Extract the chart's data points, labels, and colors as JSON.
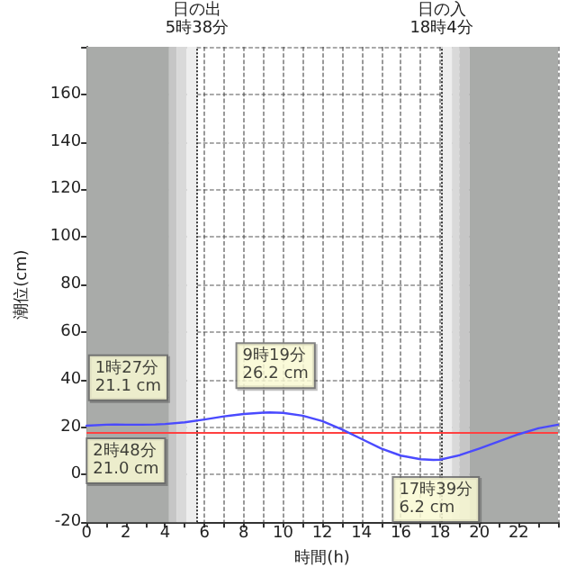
{
  "chart_data": {
    "type": "line",
    "xlabel": "時間(h)",
    "ylabel": "潮位(cm)",
    "x": [
      0,
      1,
      1.45,
      2,
      2.8,
      3.5,
      4,
      5,
      6,
      7,
      8,
      9,
      9.32,
      10,
      11,
      12,
      13,
      14,
      15,
      16,
      17,
      17.65,
      18,
      19,
      20,
      21,
      22,
      23,
      24
    ],
    "series": [
      {
        "color": "#4a4aff",
        "values": [
          20.6,
          21.0,
          21.1,
          21.0,
          21.0,
          21.1,
          21.3,
          22.0,
          23.2,
          24.5,
          25.5,
          26.1,
          26.2,
          26.0,
          24.8,
          22.5,
          19.0,
          15.0,
          11.0,
          8.0,
          6.5,
          6.2,
          6.3,
          8.2,
          11.0,
          14.0,
          17.0,
          19.5,
          21.0
        ]
      }
    ],
    "xlim": [
      0,
      24
    ],
    "ylim": [
      -20,
      180
    ],
    "xticks": [
      0,
      {
        "value": 1,
        "label": null
      },
      2,
      {
        "value": 3,
        "label": null
      },
      4,
      {
        "value": 5,
        "label": null
      },
      6,
      {
        "value": 7,
        "label": null
      },
      8,
      {
        "value": 9,
        "label": null
      },
      10,
      {
        "value": 11,
        "label": null
      },
      12,
      {
        "value": 13,
        "label": null
      },
      14,
      {
        "value": 15,
        "label": null
      },
      16,
      {
        "value": 17,
        "label": null
      },
      18,
      {
        "value": 19,
        "label": null
      },
      20,
      {
        "value": 21,
        "label": null
      },
      22,
      {
        "value": 23,
        "label": null
      },
      {
        "value": 24,
        "label": null
      }
    ],
    "yticks": [
      -20,
      0,
      20,
      40,
      60,
      80,
      100,
      120,
      140,
      160,
      {
        "value": 180,
        "label": null
      }
    ],
    "grid": true,
    "marker": "none",
    "line_style": "solid",
    "bands": [
      {
        "axis": "x",
        "from": 0,
        "to": 4.2,
        "color": "#a9aba9"
      },
      {
        "axis": "x",
        "from": 4.2,
        "to": 4.6,
        "color": "#c6c6c6"
      },
      {
        "axis": "x",
        "from": 4.6,
        "to": 5.1,
        "color": "#d9d9d9"
      },
      {
        "axis": "x",
        "from": 5.1,
        "to": 5.63,
        "color": "#eeeeee"
      },
      {
        "axis": "x",
        "from": 18.07,
        "to": 18.6,
        "color": "#eeeeee"
      },
      {
        "axis": "x",
        "from": 18.6,
        "to": 19.0,
        "color": "#d9d9d9"
      },
      {
        "axis": "x",
        "from": 19.0,
        "to": 19.5,
        "color": "#c6c6c6"
      },
      {
        "axis": "x",
        "from": 19.5,
        "to": 24,
        "color": "#a9aba9"
      }
    ],
    "ref_lines": [
      {
        "axis": "x",
        "value": 5.63,
        "label": "日の出\n5時38分",
        "color": "#333333",
        "line_style": "dotted"
      },
      {
        "axis": "x",
        "value": 18.07,
        "label": "日の入\n18時4分",
        "color": "#333333",
        "line_style": "dotted"
      },
      {
        "axis": "y",
        "value": 17.5,
        "color": "#ff4040",
        "line_style": "solid"
      }
    ],
    "annotations": [
      {
        "text": "1時27分\n21.1 cm",
        "x": 1.45,
        "y": 21.1
      },
      {
        "text": "2時48分\n21.0 cm",
        "x": 2.8,
        "y": 21.0
      },
      {
        "text": "9時19分\n26.2 cm",
        "x": 9.32,
        "y": 26.2
      },
      {
        "text": "17時39分\n6.2 cm",
        "x": 17.65,
        "y": 6.2
      }
    ]
  }
}
